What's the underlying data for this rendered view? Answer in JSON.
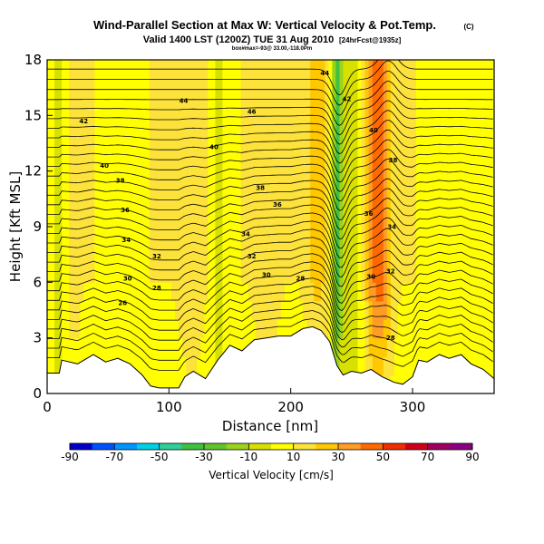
{
  "header": {
    "title": "Wind-Parallel Section at Max W: Vertical Velocity & Pot.Temp.",
    "copyright": "(C)",
    "valid_line": "Valid 1400 LST (1200Z) TUE 31 Aug 2010",
    "forecast_tag": "[24hrFcst@1935z]",
    "sub_line": "box#max=-93@ 33.00,-118.0Pm"
  },
  "chart_data": {
    "type": "heatmap",
    "xlabel": "Distance [nm]",
    "ylabel": "Height [Kft MSL]",
    "xlim": [
      0,
      367
    ],
    "ylim": [
      0,
      18
    ],
    "xticks": [
      "0",
      "100",
      "200",
      "300"
    ],
    "yticks": [
      "0",
      "3",
      "6",
      "9",
      "12",
      "15",
      "18"
    ],
    "colorbar": {
      "label": "Vertical Velocity [cm/s]",
      "ticks": [
        "-90",
        "-70",
        "-50",
        "-30",
        "-10",
        "10",
        "30",
        "50",
        "70",
        "90"
      ],
      "colors": [
        "#0000c8",
        "#0050ff",
        "#0096ff",
        "#00d2e6",
        "#2fcf9a",
        "#40c040",
        "#60c42c",
        "#9ad21e",
        "#d8e000",
        "#ffff00",
        "#fce23a",
        "#ffc800",
        "#ff9c28",
        "#ff6a00",
        "#f02d00",
        "#d00018",
        "#a00060",
        "#8a0080"
      ]
    },
    "terrain": [
      [
        0,
        1.1
      ],
      [
        10,
        1.1
      ],
      [
        12,
        1.8
      ],
      [
        25,
        1.6
      ],
      [
        38,
        2.1
      ],
      [
        48,
        1.7
      ],
      [
        58,
        1.9
      ],
      [
        68,
        1.6
      ],
      [
        78,
        1.0
      ],
      [
        85,
        0.4
      ],
      [
        92,
        0.3
      ],
      [
        108,
        0.3
      ],
      [
        113,
        0.9
      ],
      [
        120,
        1.2
      ],
      [
        130,
        0.8
      ],
      [
        140,
        1.8
      ],
      [
        150,
        2.6
      ],
      [
        160,
        2.3
      ],
      [
        170,
        2.9
      ],
      [
        180,
        3.0
      ],
      [
        190,
        3.1
      ],
      [
        200,
        3.1
      ],
      [
        210,
        3.5
      ],
      [
        218,
        3.6
      ],
      [
        225,
        3.4
      ],
      [
        232,
        2.8
      ],
      [
        238,
        1.5
      ],
      [
        243,
        1.0
      ],
      [
        250,
        1.2
      ],
      [
        258,
        1.1
      ],
      [
        266,
        1.3
      ],
      [
        275,
        0.9
      ],
      [
        285,
        0.6
      ],
      [
        292,
        0.5
      ],
      [
        300,
        0.9
      ],
      [
        305,
        1.8
      ],
      [
        312,
        1.7
      ],
      [
        322,
        2.1
      ],
      [
        330,
        1.9
      ],
      [
        340,
        2.1
      ],
      [
        348,
        1.6
      ],
      [
        358,
        1.3
      ],
      [
        367,
        0.8
      ]
    ],
    "w_features": [
      {
        "x": 8,
        "sx": 7,
        "w": -12
      },
      {
        "x": 22,
        "sx": 6,
        "w": 5
      },
      {
        "x": 60,
        "sx": 7,
        "w": -8
      },
      {
        "x": 118,
        "sx": 10,
        "w": 10
      },
      {
        "x": 142,
        "sx": 7,
        "w": -12
      },
      {
        "x": 180,
        "sx": 10,
        "w": 8
      },
      {
        "x": 238,
        "sx": 4,
        "w": -40
      },
      {
        "x": 247,
        "sx": 5,
        "w": -18
      },
      {
        "x": 222,
        "sx": 8,
        "w": 14
      },
      {
        "x": 255,
        "sx": 6,
        "w": -10
      },
      {
        "x": 272,
        "sx": 10,
        "w": 35
      },
      {
        "x": 318,
        "sx": 6,
        "w": -6
      },
      {
        "x": 352,
        "sx": 6,
        "w": -10
      }
    ],
    "contour_labels": [
      {
        "text": "44",
        "x": 112,
        "y": 15.8
      },
      {
        "text": "42",
        "x": 30,
        "y": 14.7
      },
      {
        "text": "40",
        "x": 47,
        "y": 12.3
      },
      {
        "text": "38",
        "x": 60,
        "y": 11.5
      },
      {
        "text": "36",
        "x": 64,
        "y": 9.9
      },
      {
        "text": "34",
        "x": 65,
        "y": 8.3
      },
      {
        "text": "32",
        "x": 90,
        "y": 7.4
      },
      {
        "text": "30",
        "x": 66,
        "y": 6.2
      },
      {
        "text": "28",
        "x": 90,
        "y": 5.7
      },
      {
        "text": "26",
        "x": 62,
        "y": 4.9
      },
      {
        "text": "46",
        "x": 168,
        "y": 15.2
      },
      {
        "text": "40",
        "x": 137,
        "y": 13.3
      },
      {
        "text": "38",
        "x": 175,
        "y": 11.1
      },
      {
        "text": "36",
        "x": 189,
        "y": 10.2
      },
      {
        "text": "34",
        "x": 163,
        "y": 8.6
      },
      {
        "text": "32",
        "x": 168,
        "y": 7.4
      },
      {
        "text": "30",
        "x": 180,
        "y": 6.4
      },
      {
        "text": "28",
        "x": 208,
        "y": 6.2
      },
      {
        "text": "44",
        "x": 228,
        "y": 17.3
      },
      {
        "text": "42",
        "x": 246,
        "y": 15.9
      },
      {
        "text": "40",
        "x": 268,
        "y": 14.2
      },
      {
        "text": "38",
        "x": 284,
        "y": 12.6
      },
      {
        "text": "36",
        "x": 264,
        "y": 9.7
      },
      {
        "text": "34",
        "x": 283,
        "y": 9.0
      },
      {
        "text": "32",
        "x": 282,
        "y": 6.6
      },
      {
        "text": "30",
        "x": 266,
        "y": 6.3
      },
      {
        "text": "28",
        "x": 282,
        "y": 3.0
      }
    ]
  }
}
